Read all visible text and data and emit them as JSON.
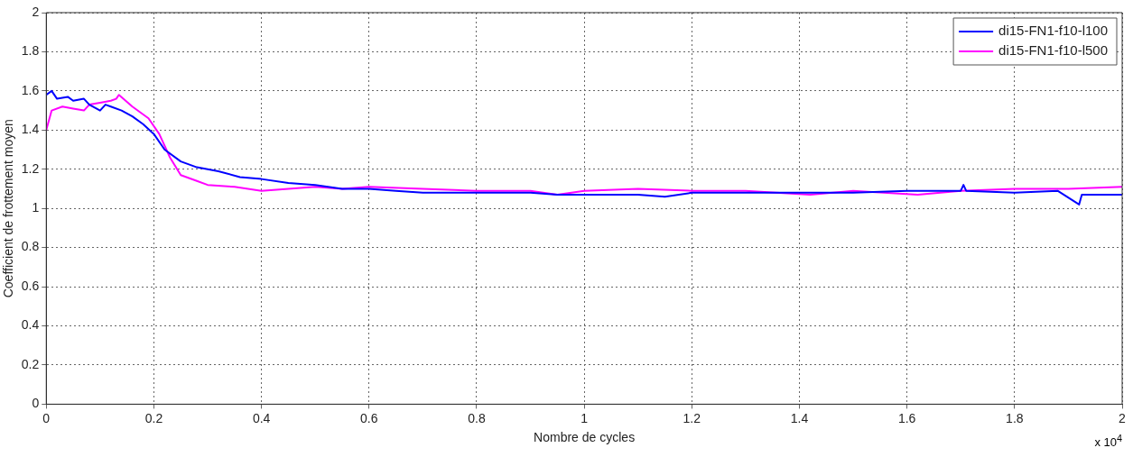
{
  "chart_data": {
    "type": "line",
    "xlabel": "Nombre de cycles",
    "ylabel": "Coefficient de frottement moyen",
    "annotations": [
      "x 10$^{4}$"
    ],
    "xlim": [
      0,
      2
    ],
    "xticks": [
      0,
      0.2,
      0.4,
      0.6,
      0.8,
      1,
      1.2,
      1.4,
      1.6,
      1.8,
      2
    ],
    "ylim": [
      0,
      2
    ],
    "yticks": [
      0,
      0.2,
      0.4,
      0.6,
      0.8,
      1,
      1.2,
      1.4,
      1.6,
      1.8,
      2
    ],
    "grid": true,
    "legend": "top right",
    "marker": "none",
    "line_style": "solid",
    "series": [
      {
        "name": "di15-FN1-f10-l100",
        "color": "#0000ff",
        "x": [
          0,
          0.01,
          0.02,
          0.04,
          0.05,
          0.07,
          0.08,
          0.1,
          0.11,
          0.12,
          0.14,
          0.16,
          0.18,
          0.2,
          0.22,
          0.25,
          0.28,
          0.32,
          0.36,
          0.4,
          0.45,
          0.5,
          0.55,
          0.6,
          0.65,
          0.7,
          0.8,
          0.9,
          0.95,
          1,
          1.1,
          1.15,
          1.2,
          1.3,
          1.4,
          1.5,
          1.6,
          1.7,
          1.705,
          1.71,
          1.8,
          1.88,
          1.92,
          1.925,
          1.95,
          2
        ],
        "values": [
          1.58,
          1.6,
          1.56,
          1.57,
          1.55,
          1.56,
          1.53,
          1.5,
          1.53,
          1.52,
          1.5,
          1.47,
          1.43,
          1.38,
          1.3,
          1.24,
          1.21,
          1.19,
          1.16,
          1.15,
          1.13,
          1.12,
          1.1,
          1.1,
          1.09,
          1.08,
          1.08,
          1.08,
          1.07,
          1.07,
          1.07,
          1.06,
          1.08,
          1.08,
          1.08,
          1.08,
          1.09,
          1.09,
          1.12,
          1.09,
          1.08,
          1.09,
          1.02,
          1.07,
          1.07,
          1.07
        ]
      },
      {
        "name": "di15-FN1-f10-l500",
        "color": "#ff00ff",
        "x": [
          0,
          0.01,
          0.03,
          0.05,
          0.07,
          0.08,
          0.1,
          0.12,
          0.13,
          0.135,
          0.16,
          0.19,
          0.21,
          0.23,
          0.25,
          0.28,
          0.3,
          0.35,
          0.4,
          0.45,
          0.5,
          0.55,
          0.6,
          0.7,
          0.8,
          0.9,
          0.95,
          1,
          1.1,
          1.2,
          1.3,
          1.42,
          1.5,
          1.62,
          1.7,
          1.8,
          1.9,
          2
        ],
        "values": [
          1.4,
          1.5,
          1.52,
          1.51,
          1.5,
          1.53,
          1.54,
          1.55,
          1.56,
          1.58,
          1.52,
          1.46,
          1.38,
          1.26,
          1.17,
          1.14,
          1.12,
          1.11,
          1.09,
          1.1,
          1.11,
          1.1,
          1.11,
          1.1,
          1.09,
          1.09,
          1.07,
          1.09,
          1.1,
          1.09,
          1.09,
          1.07,
          1.09,
          1.07,
          1.09,
          1.1,
          1.1,
          1.11
        ]
      }
    ]
  }
}
